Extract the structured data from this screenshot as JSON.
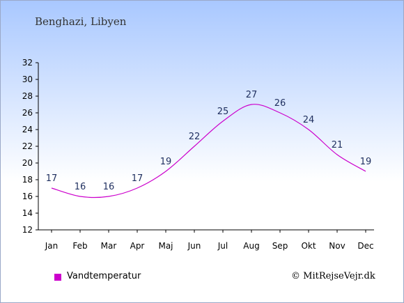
{
  "header": {
    "location": "Benghazi, Libyen"
  },
  "legend": {
    "label": "Vandtemperatur",
    "color": "#cc00cc"
  },
  "footer": {
    "copyright": "© MitRejseVejr.dk"
  },
  "chart_data": {
    "type": "line",
    "categories": [
      "Jan",
      "Feb",
      "Mar",
      "Apr",
      "Maj",
      "Jun",
      "Jul",
      "Aug",
      "Sep",
      "Okt",
      "Nov",
      "Dec"
    ],
    "series": [
      {
        "name": "Vandtemperatur",
        "values": [
          17,
          16,
          16,
          17,
          19,
          22,
          25,
          27,
          26,
          24,
          21,
          19
        ]
      }
    ],
    "ylim": [
      12,
      32
    ],
    "yticks": [
      12,
      14,
      16,
      18,
      20,
      22,
      24,
      26,
      28,
      30,
      32
    ],
    "grid": false,
    "legend_position": "bottom-left"
  }
}
